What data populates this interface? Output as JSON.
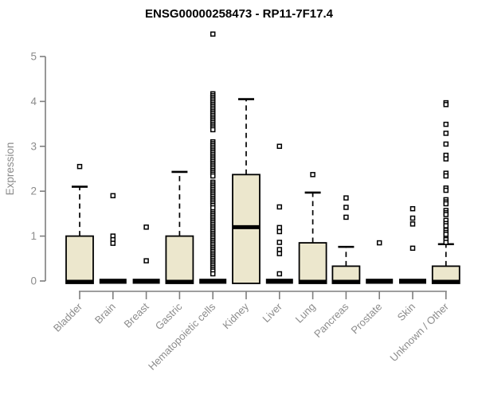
{
  "chart_data": {
    "type": "box",
    "title": "ENSG00000258473 - RP11-7F17.4",
    "ylabel": "Expression",
    "xlabel": "",
    "ylim": [
      0,
      5.5
    ],
    "yticks": [
      0,
      1,
      2,
      3,
      4,
      5
    ],
    "grid": false,
    "legend": "none",
    "colors": {
      "box_fill": "#ECE7CD",
      "box_stroke": "#000000",
      "axis_line": "#7f7f7f",
      "tick_label": "#8c8c8c",
      "title_color": "#000000"
    },
    "categories": [
      "Bladder",
      "Brain",
      "Breast",
      "Gastric",
      "Hematopoietic cells",
      "Kidney",
      "Liver",
      "Lung",
      "Pancreas",
      "Prostate",
      "Skin",
      "Unknown / Other"
    ],
    "series": [
      {
        "name": "Bladder",
        "q1": 0,
        "median": 0,
        "q3": 1.0,
        "whisker_low": 0,
        "whisker_high": 2.1,
        "outliers": [
          2.55
        ]
      },
      {
        "name": "Brain",
        "q1": 0,
        "median": 0,
        "q3": 0,
        "whisker_low": 0,
        "whisker_high": 0,
        "outliers": [
          1.9,
          1.0,
          0.92,
          0.84
        ]
      },
      {
        "name": "Breast",
        "q1": 0,
        "median": 0,
        "q3": 0,
        "whisker_low": 0,
        "whisker_high": 0,
        "outliers": [
          1.2,
          0.45
        ]
      },
      {
        "name": "Gastric",
        "q1": 0,
        "median": 0,
        "q3": 1.0,
        "whisker_low": 0,
        "whisker_high": 2.43,
        "outliers": []
      },
      {
        "name": "Hematopoietic cells",
        "q1": 0,
        "median": 0,
        "q3": 0,
        "whisker_low": 0,
        "whisker_high": 0,
        "outliers": [
          5.5,
          4.17,
          4.13,
          4.09,
          4.05,
          4.01,
          3.97,
          3.93,
          3.89,
          3.85,
          3.81,
          3.77,
          3.73,
          3.69,
          3.65,
          3.61,
          3.57,
          3.53,
          3.49,
          3.45,
          3.41,
          3.37,
          3.1,
          3.06,
          3.02,
          2.98,
          2.94,
          2.9,
          2.86,
          2.82,
          2.78,
          2.74,
          2.7,
          2.66,
          2.62,
          2.58,
          2.54,
          2.5,
          2.46,
          2.42,
          2.38,
          2.34,
          2.2,
          2.16,
          2.12,
          2.08,
          2.04,
          2.0,
          1.96,
          1.92,
          1.88,
          1.84,
          1.8,
          1.76,
          1.72,
          1.68,
          1.63,
          1.54,
          1.5,
          1.46,
          1.42,
          1.38,
          1.34,
          1.3,
          1.26,
          1.22,
          1.18,
          1.14,
          1.1,
          1.06,
          1.02,
          0.98,
          0.94,
          0.9,
          0.86,
          0.82,
          0.78,
          0.74,
          0.7,
          0.66,
          0.62,
          0.58,
          0.54,
          0.5,
          0.46,
          0.42,
          0.38,
          0.34,
          0.3,
          0.26,
          0.22,
          0.16
        ]
      },
      {
        "name": "Kidney",
        "q1": 0,
        "median": 1.2,
        "q3": 2.37,
        "whisker_low": 0,
        "whisker_high": 4.05,
        "outliers": []
      },
      {
        "name": "Liver",
        "q1": 0,
        "median": 0,
        "q3": 0,
        "whisker_low": 0,
        "whisker_high": 0,
        "outliers": [
          3.0,
          1.65,
          1.19,
          1.1,
          0.86,
          0.7,
          0.61,
          0.16
        ]
      },
      {
        "name": "Lung",
        "q1": 0,
        "median": 0,
        "q3": 0.85,
        "whisker_low": 0,
        "whisker_high": 1.97,
        "outliers": [
          2.37
        ]
      },
      {
        "name": "Pancreas",
        "q1": 0,
        "median": 0,
        "q3": 0.33,
        "whisker_low": 0,
        "whisker_high": 0.76,
        "outliers": [
          1.85,
          1.64,
          1.42
        ]
      },
      {
        "name": "Prostate",
        "q1": 0,
        "median": 0,
        "q3": 0,
        "whisker_low": 0,
        "whisker_high": 0,
        "outliers": [
          0.85
        ]
      },
      {
        "name": "Skin",
        "q1": 0,
        "median": 0,
        "q3": 0,
        "whisker_low": 0,
        "whisker_high": 0,
        "outliers": [
          1.61,
          1.4,
          1.27,
          0.73
        ]
      },
      {
        "name": "Unknown / Other",
        "q1": 0,
        "median": 0,
        "q3": 0.33,
        "whisker_low": 0,
        "whisker_high": 0.82,
        "outliers": [
          3.97,
          3.93,
          3.49,
          3.29,
          3.05,
          2.8,
          2.72,
          2.4,
          2.34,
          2.07,
          2.02,
          1.81,
          1.76,
          1.72,
          1.57,
          1.52,
          1.48,
          1.35,
          1.28,
          1.23,
          1.13,
          1.08,
          1.04,
          0.95,
          0.92,
          0.86
        ]
      }
    ]
  }
}
